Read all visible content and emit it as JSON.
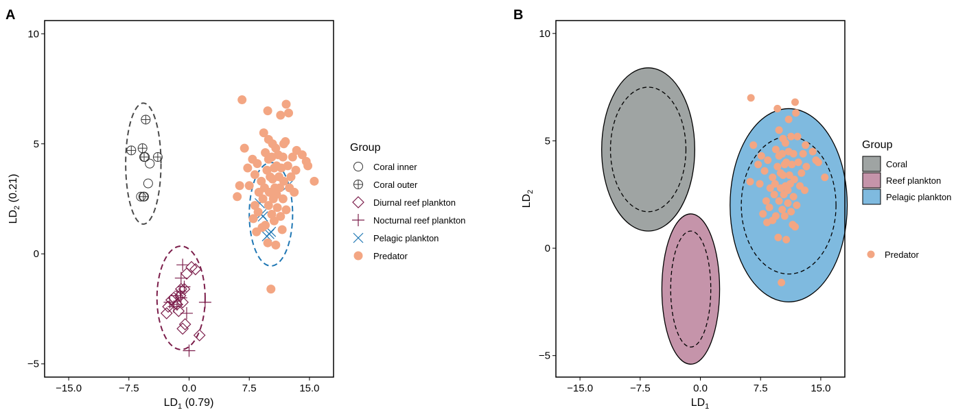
{
  "panels": {
    "a": {
      "label": "A"
    },
    "b": {
      "label": "B"
    }
  },
  "chart_data": [
    {
      "type": "scatter",
      "panel": "A",
      "xlabel_main": "LD",
      "xlabel_sub": "1",
      "xlabel_suffix": " (0.79)",
      "ylabel_main": "LD",
      "ylabel_sub": "2",
      "ylabel_suffix": " (0.21)",
      "xlim": [
        -18,
        18
      ],
      "ylim": [
        -5.6,
        10.6
      ],
      "xticks": [
        -15,
        -7.5,
        0,
        7.5,
        15
      ],
      "xtick_labels": [
        "−15.0",
        "−7.5",
        "0.0",
        "7.5",
        "15.0"
      ],
      "yticks": [
        -5,
        0,
        5,
        10
      ],
      "ytick_labels": [
        "−5",
        "0",
        "5",
        "10"
      ],
      "grid": false,
      "legend_position": "right",
      "legend_title": "Group",
      "series": [
        {
          "name": "Coral inner",
          "marker": "circle-open",
          "color": "#333333",
          "points": [
            [
              -5.5,
              4.4
            ],
            [
              -4.9,
              4.1
            ],
            [
              -5.1,
              3.2
            ],
            [
              -6.0,
              2.6
            ],
            [
              -5.6,
              2.6
            ]
          ]
        },
        {
          "name": "Coral outer",
          "marker": "circle-plus",
          "color": "#333333",
          "points": [
            [
              -5.4,
              6.1
            ],
            [
              -7.2,
              4.7
            ],
            [
              -5.8,
              4.8
            ],
            [
              -5.6,
              4.4
            ],
            [
              -3.9,
              4.4
            ],
            [
              -5.7,
              2.6
            ]
          ]
        },
        {
          "name": "Diurnal reef plankton",
          "marker": "diamond-open",
          "color": "#7b1d4a",
          "points": [
            [
              -0.3,
              -0.9
            ],
            [
              -0.6,
              -1.6
            ],
            [
              0.3,
              -0.6
            ],
            [
              0.8,
              -0.7
            ],
            [
              -1.1,
              -1.9
            ],
            [
              -2.2,
              -2.1
            ],
            [
              -2.6,
              -2.4
            ],
            [
              -1.9,
              -2.0
            ],
            [
              -1.5,
              -2.3
            ],
            [
              -0.8,
              -2.2
            ],
            [
              -1.3,
              -2.6
            ],
            [
              -2.8,
              -2.7
            ],
            [
              -0.5,
              -3.2
            ],
            [
              -0.8,
              -3.4
            ],
            [
              1.3,
              -3.7
            ],
            [
              -1.0,
              -1.6
            ]
          ]
        },
        {
          "name": "Nocturnal reef plankton",
          "marker": "plus",
          "color": "#7b1d4a",
          "points": [
            [
              -0.8,
              -0.5
            ],
            [
              -1.0,
              -1.1
            ],
            [
              -0.6,
              -1.5
            ],
            [
              -1.5,
              -1.9
            ],
            [
              -2.4,
              -2.2
            ],
            [
              2.0,
              -2.2
            ],
            [
              -0.3,
              -2.7
            ],
            [
              -1.9,
              -2.4
            ],
            [
              -1.0,
              -2.0
            ],
            [
              -1.5,
              -2.3
            ],
            [
              -1.1,
              -1.7
            ],
            [
              0.0,
              -4.4
            ]
          ]
        },
        {
          "name": "Pelagic plankton",
          "marker": "x",
          "color": "#1f77b4",
          "points": [
            [
              8.8,
              2.3
            ],
            [
              9.0,
              1.8
            ],
            [
              9.2,
              1.7
            ],
            [
              12.3,
              3.1
            ],
            [
              10.2,
              1.0
            ],
            [
              9.7,
              0.8
            ],
            [
              10.0,
              0.9
            ]
          ]
        },
        {
          "name": "Predator",
          "marker": "circle-filled",
          "color": "#f3a683",
          "points": [
            [
              6.6,
              7.0
            ],
            [
              9.8,
              6.5
            ],
            [
              12.1,
              6.8
            ],
            [
              11.4,
              6.3
            ],
            [
              12.4,
              6.4
            ],
            [
              9.3,
              5.5
            ],
            [
              10.4,
              5.0
            ],
            [
              11.8,
              5.0
            ],
            [
              9.9,
              5.2
            ],
            [
              12.0,
              5.1
            ],
            [
              6.9,
              4.8
            ],
            [
              10.8,
              4.8
            ],
            [
              13.4,
              4.7
            ],
            [
              9.5,
              4.6
            ],
            [
              11.1,
              4.5
            ],
            [
              14.1,
              4.5
            ],
            [
              7.9,
              4.3
            ],
            [
              9.9,
              4.3
            ],
            [
              10.3,
              4.4
            ],
            [
              11.7,
              4.4
            ],
            [
              12.9,
              4.4
            ],
            [
              14.6,
              4.2
            ],
            [
              8.5,
              4.1
            ],
            [
              10.9,
              4.0
            ],
            [
              12.3,
              4.0
            ],
            [
              14.8,
              4.0
            ],
            [
              7.3,
              3.9
            ],
            [
              9.7,
              3.8
            ],
            [
              10.6,
              3.9
            ],
            [
              11.5,
              3.9
            ],
            [
              13.3,
              3.8
            ],
            [
              8.2,
              3.6
            ],
            [
              10.1,
              3.5
            ],
            [
              11.2,
              3.5
            ],
            [
              12.7,
              3.5
            ],
            [
              9.0,
              3.3
            ],
            [
              10.4,
              3.4
            ],
            [
              11.8,
              3.3
            ],
            [
              15.6,
              3.3
            ],
            [
              6.3,
              3.1
            ],
            [
              7.5,
              3.1
            ],
            [
              9.4,
              3.0
            ],
            [
              10.7,
              3.0
            ],
            [
              11.3,
              3.0
            ],
            [
              12.5,
              3.0
            ],
            [
              8.7,
              2.8
            ],
            [
              10.0,
              2.8
            ],
            [
              10.9,
              2.7
            ],
            [
              13.1,
              2.8
            ],
            [
              6.0,
              2.6
            ],
            [
              9.2,
              2.5
            ],
            [
              10.5,
              2.5
            ],
            [
              11.7,
              2.5
            ],
            [
              8.2,
              2.2
            ],
            [
              9.9,
              2.2
            ],
            [
              11.0,
              2.1
            ],
            [
              12.1,
              2.0
            ],
            [
              8.6,
              1.9
            ],
            [
              10.3,
              1.8
            ],
            [
              11.4,
              1.7
            ],
            [
              8.0,
              1.6
            ],
            [
              9.5,
              1.3
            ],
            [
              10.6,
              1.5
            ],
            [
              9.1,
              1.2
            ],
            [
              8.4,
              1.0
            ],
            [
              9.8,
              0.5
            ],
            [
              10.8,
              0.4
            ],
            [
              11.6,
              1.1
            ],
            [
              10.2,
              -1.6
            ]
          ]
        }
      ],
      "ellipses": [
        {
          "group": "Coral",
          "cx": -5.7,
          "cy": 4.1,
          "rx": 2.2,
          "ry": 2.75,
          "color": "#4a4a4a"
        },
        {
          "group": "Reef plankton",
          "cx": -1.0,
          "cy": -2.0,
          "rx": 3.0,
          "ry": 2.35,
          "color": "#7b1d4a"
        },
        {
          "group": "Pelagic plankton",
          "cx": 10.2,
          "cy": 1.8,
          "rx": 2.7,
          "ry": 2.35,
          "color": "#1f77b4"
        }
      ]
    },
    {
      "type": "scatter",
      "panel": "B",
      "xlabel_main": "LD",
      "xlabel_sub": "1",
      "ylabel_main": "LD",
      "ylabel_sub": "2",
      "xlim": [
        -18,
        18
      ],
      "ylim": [
        -6,
        10.6
      ],
      "xticks": [
        -15,
        -7.5,
        0,
        7.5,
        15
      ],
      "xtick_labels": [
        "−15.0",
        "−7.5",
        "0.0",
        "7.5",
        "15.0"
      ],
      "yticks": [
        -5,
        0,
        5,
        10
      ],
      "ytick_labels": [
        "−5",
        "0",
        "5",
        "10"
      ],
      "grid": false,
      "legend_position": "right",
      "legend_title": "Group",
      "legend_entries": [
        {
          "name": "Coral",
          "color": "#9fa4a3"
        },
        {
          "name": "Reef plankton",
          "color": "#c594aa"
        },
        {
          "name": "Pelagic plankton",
          "color": "#7fbadf"
        }
      ],
      "predator_legend": {
        "name": "Predator",
        "color": "#f3a683"
      },
      "regions": [
        {
          "group": "Coral",
          "fill": "#9fa4a3",
          "cx": -6.5,
          "cy": 4.6,
          "rx": 5.8,
          "ry": 3.8,
          "inner_rx": 4.7,
          "inner_ry": 2.9
        },
        {
          "group": "Reef plankton",
          "fill": "#c594aa",
          "cx": -1.2,
          "cy": -1.9,
          "rx": 3.6,
          "ry": 3.5,
          "inner_rx": 2.5,
          "inner_ry": 2.7
        },
        {
          "group": "Pelagic plankton",
          "fill": "#7fbadf",
          "cx": 11.0,
          "cy": 2.0,
          "rx": 7.3,
          "ry": 4.5,
          "inner_rx": 5.9,
          "inner_ry": 3.2
        }
      ],
      "predator_points": [
        [
          6.3,
          7.0
        ],
        [
          9.6,
          6.5
        ],
        [
          11.8,
          6.8
        ],
        [
          11.0,
          6.0
        ],
        [
          11.9,
          6.3
        ],
        [
          9.8,
          5.5
        ],
        [
          11.3,
          5.2
        ],
        [
          10.3,
          5.1
        ],
        [
          12.1,
          5.2
        ],
        [
          6.6,
          4.8
        ],
        [
          10.6,
          4.9
        ],
        [
          13.1,
          4.8
        ],
        [
          9.4,
          4.6
        ],
        [
          11.0,
          4.5
        ],
        [
          14.0,
          4.5
        ],
        [
          7.6,
          4.3
        ],
        [
          9.8,
          4.3
        ],
        [
          10.2,
          4.4
        ],
        [
          11.6,
          4.4
        ],
        [
          12.8,
          4.4
        ],
        [
          14.4,
          4.1
        ],
        [
          8.4,
          4.1
        ],
        [
          10.7,
          4.0
        ],
        [
          12.2,
          4.0
        ],
        [
          14.7,
          4.0
        ],
        [
          7.2,
          3.9
        ],
        [
          9.6,
          3.8
        ],
        [
          10.5,
          3.9
        ],
        [
          11.4,
          3.9
        ],
        [
          13.2,
          3.8
        ],
        [
          8.0,
          3.6
        ],
        [
          10.0,
          3.5
        ],
        [
          11.1,
          3.4
        ],
        [
          12.6,
          3.5
        ],
        [
          9.0,
          3.3
        ],
        [
          10.3,
          3.4
        ],
        [
          11.7,
          3.2
        ],
        [
          15.5,
          3.3
        ],
        [
          6.2,
          3.1
        ],
        [
          7.4,
          3.0
        ],
        [
          9.3,
          3.0
        ],
        [
          10.6,
          2.9
        ],
        [
          11.2,
          3.0
        ],
        [
          12.4,
          2.9
        ],
        [
          8.7,
          2.8
        ],
        [
          10.0,
          2.8
        ],
        [
          10.9,
          2.7
        ],
        [
          13.0,
          2.7
        ],
        [
          9.2,
          2.5
        ],
        [
          10.4,
          2.5
        ],
        [
          11.6,
          2.4
        ],
        [
          8.2,
          2.2
        ],
        [
          9.8,
          2.2
        ],
        [
          10.9,
          2.1
        ],
        [
          12.0,
          2.0
        ],
        [
          8.6,
          1.9
        ],
        [
          10.2,
          1.8
        ],
        [
          11.3,
          1.7
        ],
        [
          7.8,
          1.6
        ],
        [
          9.4,
          1.5
        ],
        [
          10.5,
          1.5
        ],
        [
          9.0,
          1.3
        ],
        [
          8.3,
          1.2
        ],
        [
          11.5,
          1.1
        ],
        [
          9.7,
          0.5
        ],
        [
          10.7,
          0.4
        ],
        [
          11.8,
          1.0
        ],
        [
          10.1,
          -1.6
        ]
      ]
    }
  ]
}
